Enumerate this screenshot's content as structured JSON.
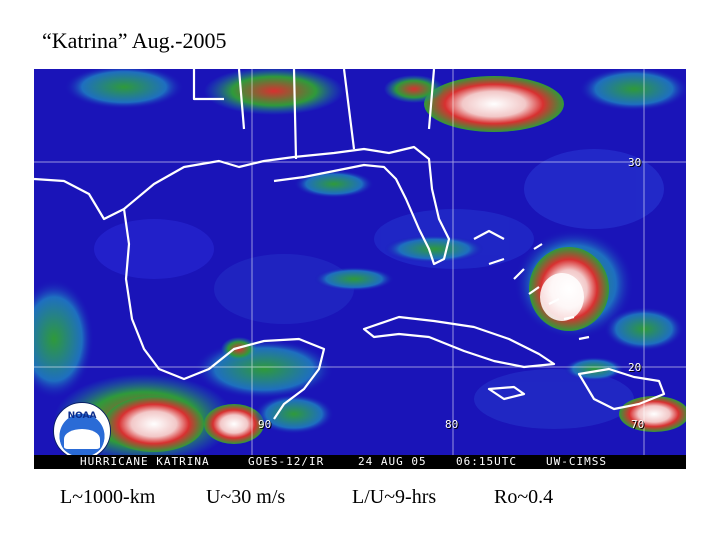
{
  "slide": {
    "title": "“Katrina” Aug.-2005"
  },
  "satellite_image": {
    "grid_labels": {
      "lat_30": "30",
      "lat_20": "20",
      "lon_90": "90",
      "lon_80": "80",
      "lon_70": "70"
    },
    "logo_text": "NOAA",
    "caption": {
      "storm": "HURRICANE KATRINA",
      "sensor": "GOES-12/IR",
      "date": "24 AUG 05",
      "time": "06:15UTC",
      "source": "UW-CIMSS"
    },
    "colors": {
      "ocean": "#1a14b8",
      "land_cloud_green": "#2f9a3a",
      "cloud_red": "#d82d2d",
      "cloud_white": "#f4e6e6",
      "outline": "#ffffff"
    }
  },
  "stats": {
    "length_scale": "L~1000-km",
    "velocity_scale": "U~30 m/s",
    "time_scale": "L/U~9-hrs",
    "rossby_number": "Ro~0.4"
  }
}
